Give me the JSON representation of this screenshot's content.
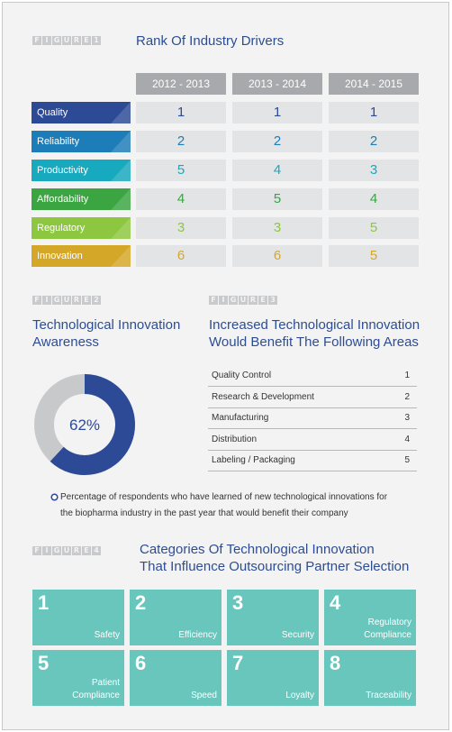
{
  "figure1": {
    "label": [
      "F",
      "I",
      "G",
      "U",
      "R",
      "E",
      "1"
    ],
    "title": "Rank Of Industry Drivers",
    "years": [
      "2012 - 2013",
      "2013 - 2014",
      "2014 - 2015"
    ],
    "rows": [
      {
        "driver": "Quality",
        "ranks": [
          "1",
          "1",
          "1"
        ],
        "color": "#2d4a96",
        "text_color": "#2d4a96"
      },
      {
        "driver": "Reliability",
        "ranks": [
          "2",
          "2",
          "2"
        ],
        "color": "#1d7db8",
        "text_color": "#1d7db8"
      },
      {
        "driver": "Productivity",
        "ranks": [
          "5",
          "4",
          "3"
        ],
        "color": "#17a9bd",
        "text_color": "#17a9bd"
      },
      {
        "driver": "Affordability",
        "ranks": [
          "4",
          "5",
          "4"
        ],
        "color": "#3aa541",
        "text_color": "#3aa541"
      },
      {
        "driver": "Regulatory",
        "ranks": [
          "3",
          "3",
          "5"
        ],
        "color": "#8dc63f",
        "text_color": "#8dc63f"
      },
      {
        "driver": "Innovation",
        "ranks": [
          "6",
          "6",
          "5"
        ],
        "color": "#d5a728",
        "text_color": "#d5a728"
      }
    ]
  },
  "figure2": {
    "label": [
      "F",
      "I",
      "G",
      "U",
      "R",
      "E",
      "2"
    ],
    "title_line1": "Technological Innovation",
    "title_line2": "Awareness",
    "percent_text": "62%",
    "percent_value": 62,
    "colors": {
      "fill": "#2d4a96",
      "track": "#c8c9cb",
      "inner": "#f3f3f4"
    },
    "caption_line1": "Percentage of respondents who have learned of new technological innovations for",
    "caption_line2": "the biopharma industry in the past year that would benefit their company"
  },
  "figure3": {
    "label": [
      "F",
      "I",
      "G",
      "U",
      "R",
      "E",
      "3"
    ],
    "title_line1": "Increased Technological Innovation",
    "title_line2": "Would Benefit The Following Areas",
    "rows": [
      {
        "area": "Quality Control",
        "rank": "1"
      },
      {
        "area": "Research & Development",
        "rank": "2"
      },
      {
        "area": "Manufacturing",
        "rank": "3"
      },
      {
        "area": "Distribution",
        "rank": "4"
      },
      {
        "area": "Labeling / Packaging",
        "rank": "5"
      }
    ]
  },
  "figure4": {
    "label": [
      "F",
      "I",
      "G",
      "U",
      "R",
      "E",
      "4"
    ],
    "title_line1": "Categories Of Technological Innovation",
    "title_line2": "That Influence Outsourcing Partner Selection",
    "tiles": [
      {
        "num": "1",
        "line1": "",
        "line2": "Safety"
      },
      {
        "num": "2",
        "line1": "",
        "line2": "Efficiency"
      },
      {
        "num": "3",
        "line1": "",
        "line2": "Security"
      },
      {
        "num": "4",
        "line1": "Regulatory",
        "line2": "Compliance"
      },
      {
        "num": "5",
        "line1": "Patient",
        "line2": "Compliance"
      },
      {
        "num": "6",
        "line1": "",
        "line2": "Speed"
      },
      {
        "num": "7",
        "line1": "",
        "line2": "Loyalty"
      },
      {
        "num": "8",
        "line1": "",
        "line2": "Traceability"
      }
    ]
  }
}
